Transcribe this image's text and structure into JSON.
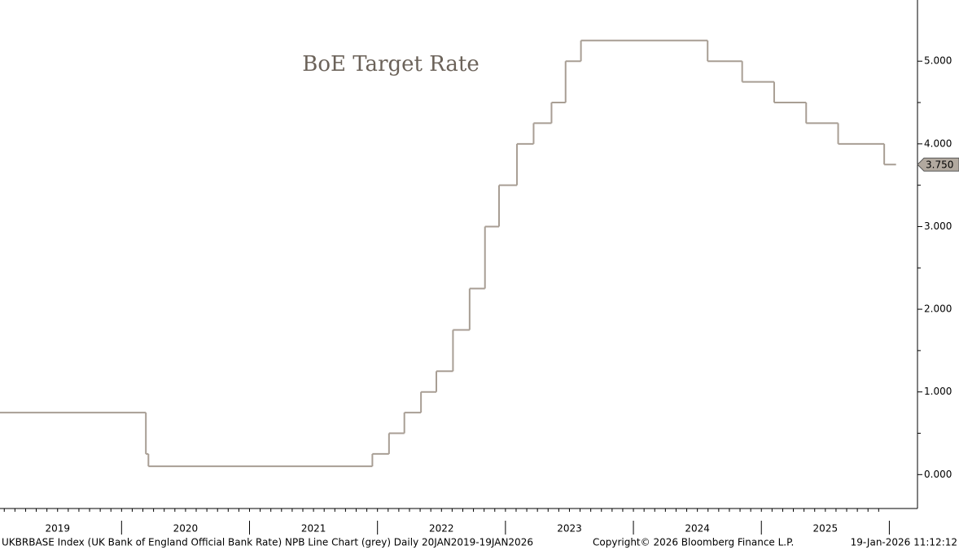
{
  "chart_data": {
    "type": "step",
    "title": "BoE Target Rate",
    "series": [
      {
        "name": "UKBRBASE Index",
        "color": "#a89e94",
        "x": [
          2019.05,
          2020.19,
          2020.21,
          2021.96,
          2022.09,
          2022.21,
          2022.34,
          2022.46,
          2022.59,
          2022.72,
          2022.84,
          2022.95,
          2023.09,
          2023.22,
          2023.36,
          2023.47,
          2023.59,
          2024.58,
          2024.85,
          2025.1,
          2025.35,
          2025.6,
          2025.96,
          2026.05
        ],
        "values": [
          0.75,
          0.25,
          0.1,
          0.25,
          0.5,
          0.75,
          1.0,
          1.25,
          1.75,
          2.25,
          3.0,
          3.5,
          4.0,
          4.25,
          4.5,
          5.0,
          5.25,
          5.0,
          4.75,
          4.5,
          4.25,
          4.0,
          3.75,
          3.75
        ],
        "value_labels": [
          null,
          null,
          null,
          null,
          null,
          null,
          null,
          null,
          null,
          null,
          null,
          null,
          null,
          null,
          null,
          null,
          null,
          null,
          null,
          null,
          null,
          null,
          null,
          "3.750"
        ]
      }
    ],
    "xlim": [
      2019.05,
      2026.22
    ],
    "xticks": [
      {
        "value": 2019.5,
        "label": "2019"
      },
      {
        "value": 2020.5,
        "label": "2020"
      },
      {
        "value": 2021.5,
        "label": "2021"
      },
      {
        "value": 2022.5,
        "label": "2022"
      },
      {
        "value": 2023.5,
        "label": "2023"
      },
      {
        "value": 2024.5,
        "label": "2024"
      },
      {
        "value": 2025.5,
        "label": "2025"
      }
    ],
    "ylim": [
      -0.41,
      5.74
    ],
    "yticks": [
      {
        "value": 0,
        "label": "0.000"
      },
      {
        "value": 1,
        "label": "1.000"
      },
      {
        "value": 2,
        "label": "2.000"
      },
      {
        "value": 3,
        "label": "3.000"
      },
      {
        "value": 4,
        "label": "4.000"
      },
      {
        "value": 5,
        "label": "5.000"
      }
    ],
    "footer": {
      "description": "UKBRBASE Index (UK Bank of England Official Bank Rate) NPB Line Chart (grey) Daily 20JAN2019-19JAN2026",
      "copyright": "Copyright© 2026 Bloomberg Finance L.P.",
      "timestamp": "19-Jan-2026 11:12:12"
    }
  }
}
